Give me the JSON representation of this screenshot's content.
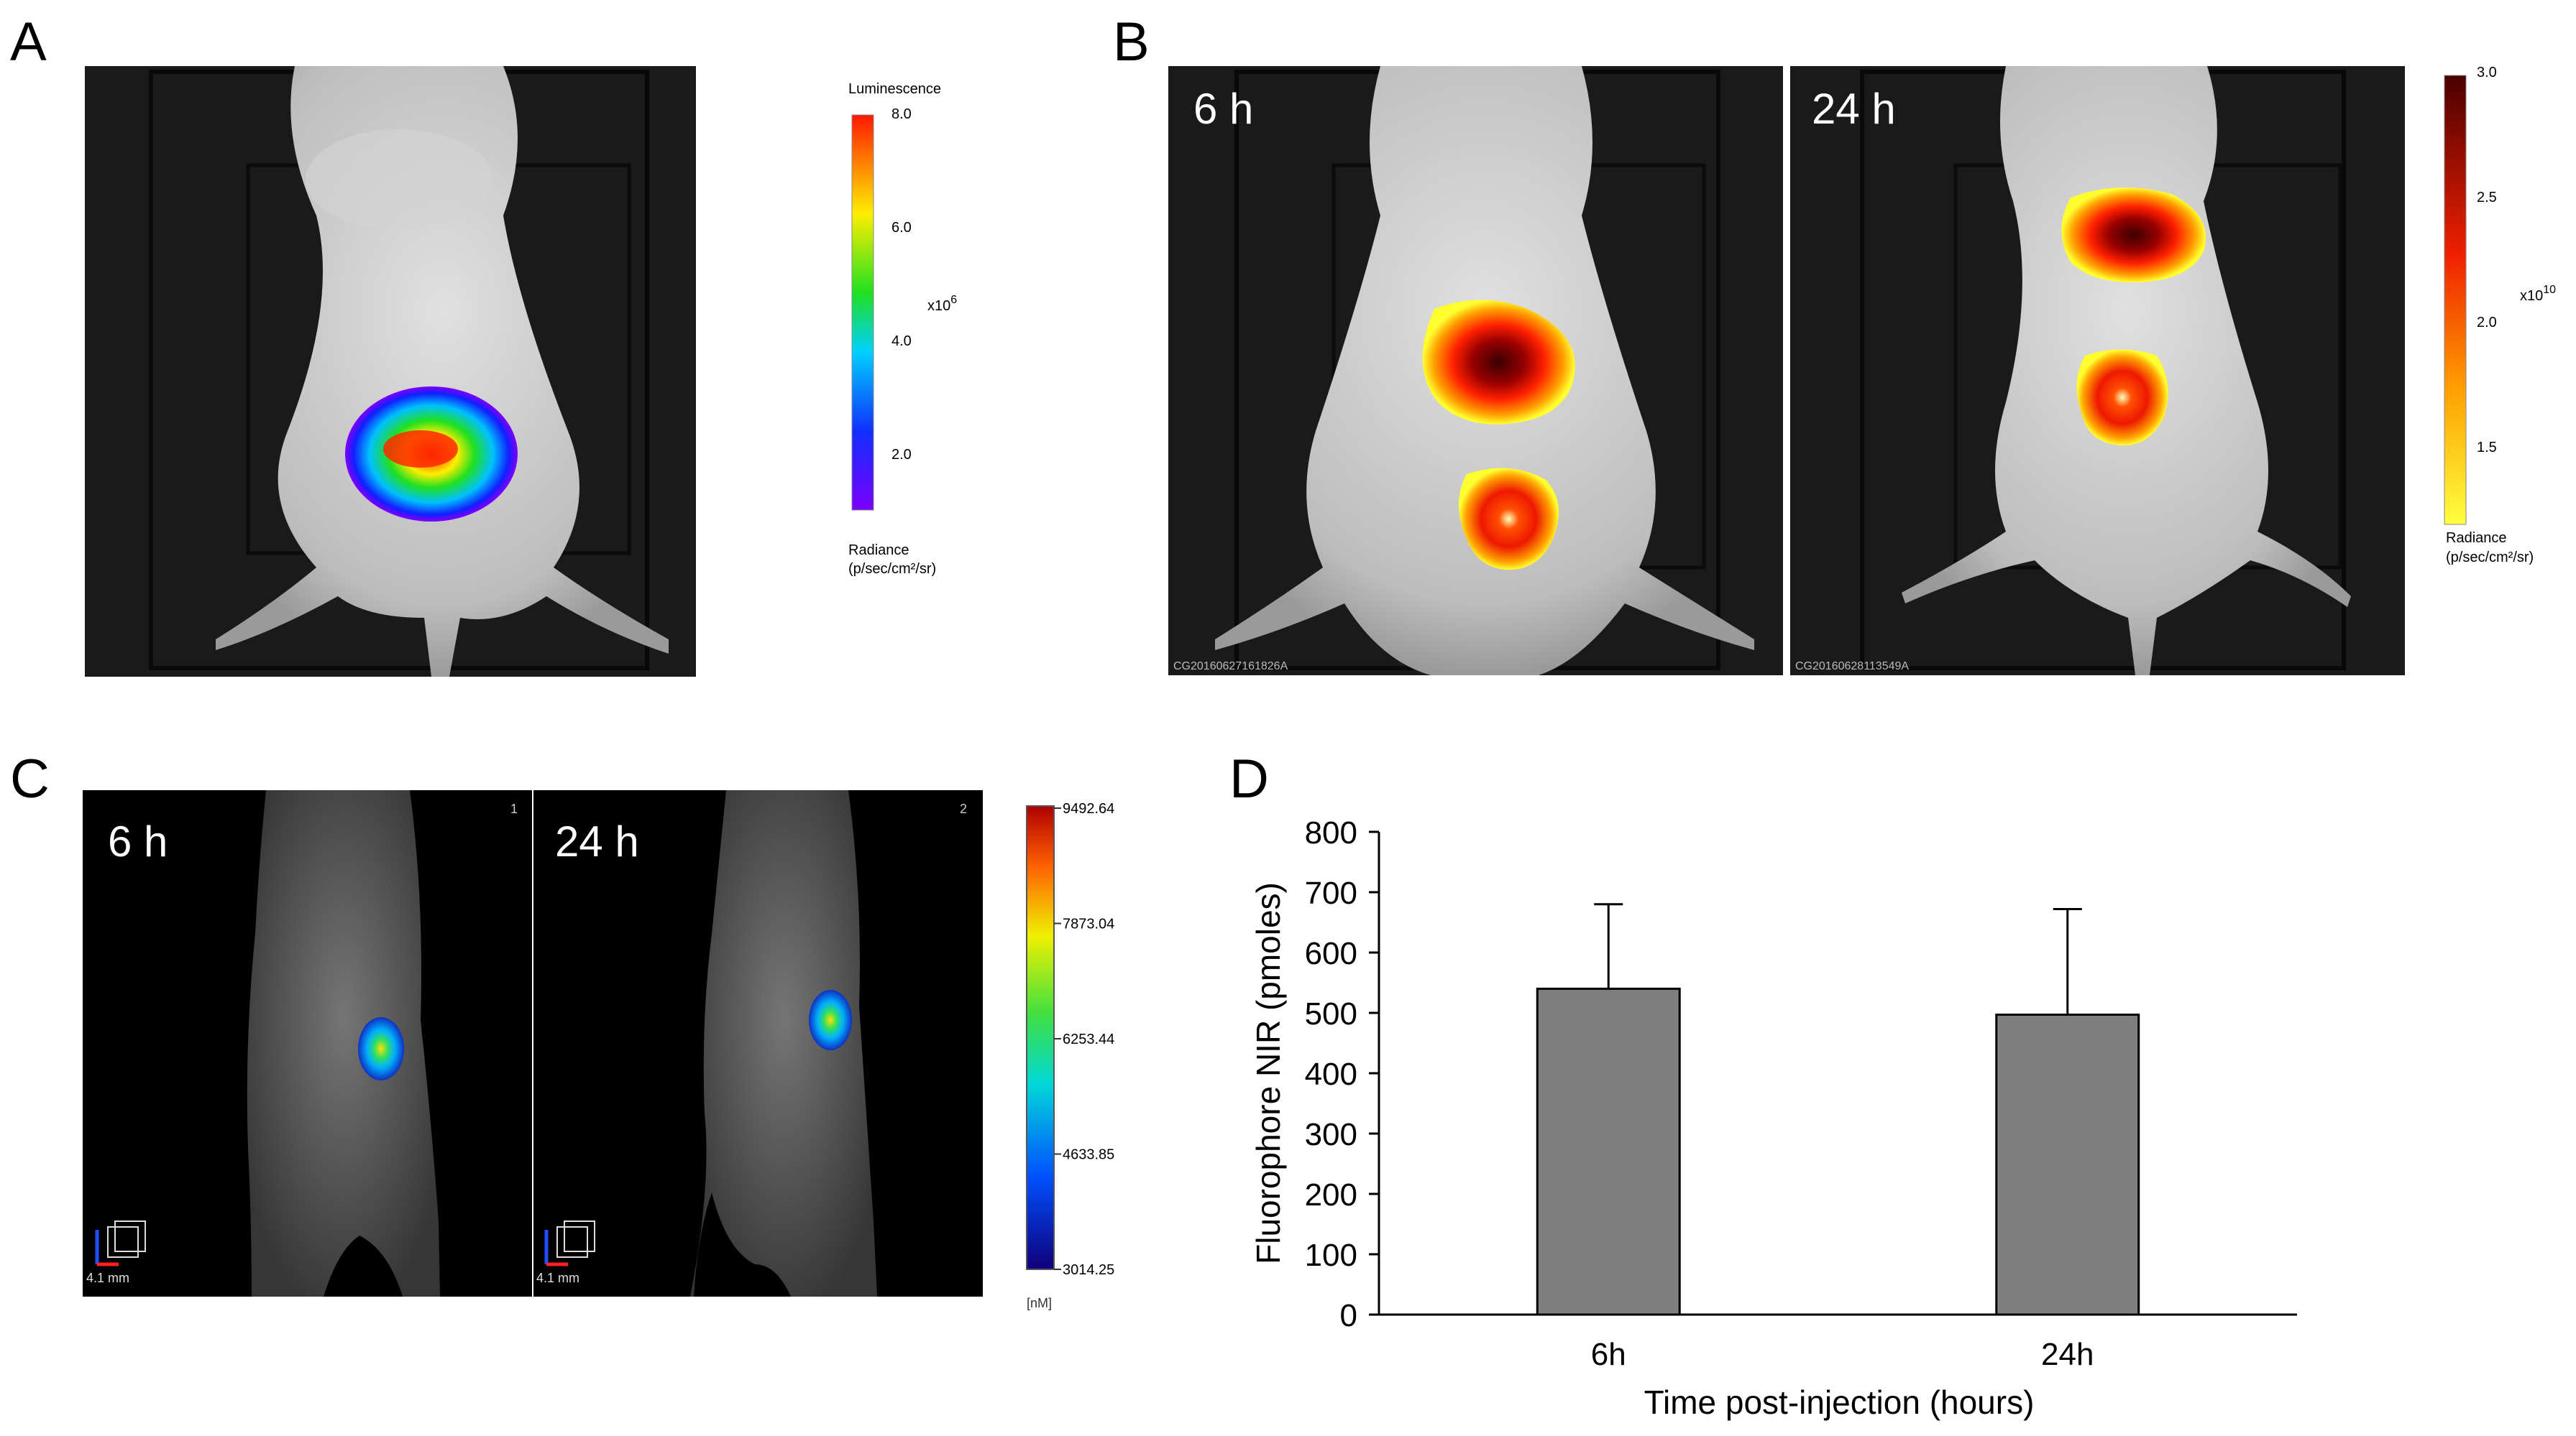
{
  "panels": {
    "a": {
      "letter": "A",
      "scale_title": "Luminescence",
      "ticks": [
        "8.0",
        "6.0",
        "4.0",
        "2.0"
      ],
      "multiplier_base": "x10",
      "multiplier_exp": "6",
      "unit_line1": "Radiance",
      "unit_line2": "(p/sec/cm²/sr)"
    },
    "b": {
      "letter": "B",
      "images": [
        {
          "time": "6 h",
          "id": "CG20160627161826A"
        },
        {
          "time": "24 h",
          "id": "CG20160628113549A"
        }
      ],
      "ticks": [
        "3.0",
        "2.5",
        "2.0",
        "1.5"
      ],
      "multiplier_base": "x10",
      "multiplier_exp": "10",
      "unit_line1": "Radiance",
      "unit_line2": "(p/sec/cm²/sr)"
    },
    "c": {
      "letter": "C",
      "images": [
        {
          "time": "6 h",
          "index": "1",
          "scale": "4.1 mm"
        },
        {
          "time": "24 h",
          "index": "2",
          "scale": "4.1 mm"
        }
      ],
      "ticks": [
        "9492.64",
        "7873.04",
        "6253.44",
        "4633.85",
        "3014.25"
      ],
      "unit": "[nM]"
    },
    "d": {
      "letter": "D"
    }
  },
  "chart_data": {
    "type": "bar",
    "categories": [
      "6h",
      "24h"
    ],
    "values": [
      540,
      497
    ],
    "error_upper": [
      140,
      175
    ],
    "xlabel": "Time post-injection (hours)",
    "ylabel": "Fluorophore NIR (pmoles)",
    "ylim": [
      0,
      800
    ],
    "yticks": [
      0,
      100,
      200,
      300,
      400,
      500,
      600,
      700,
      800
    ],
    "bar_color": "#7f7f7f",
    "grid": false
  }
}
